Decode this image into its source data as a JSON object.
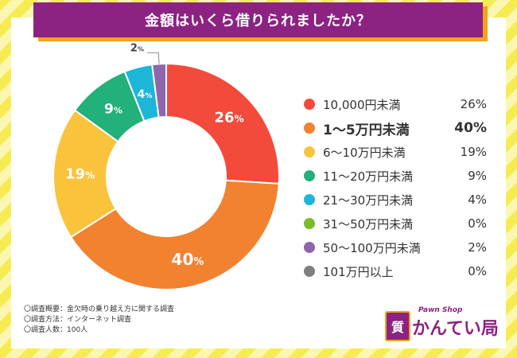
{
  "title": "金額はいくら借りられましたか？",
  "chart_data": {
    "type": "pie",
    "title": "金額はいくら借りられましたか？",
    "categories": [
      "10,000円未満",
      "1〜5万円未満",
      "6〜10万円未満",
      "11〜20万円未満",
      "21〜30万円未満",
      "31〜50万円未満",
      "50〜100万円未満",
      "101万円以上"
    ],
    "values": [
      26,
      40,
      19,
      9,
      4,
      0,
      2,
      0
    ],
    "value_labels": [
      "26%",
      "40%",
      "19%",
      "9%",
      "4%",
      "0%",
      "2%",
      "0%"
    ],
    "colors": [
      "#f34a3b",
      "#f28130",
      "#f9c33c",
      "#22b07b",
      "#1db6d9",
      "#7cbb2c",
      "#8f66ad",
      "#7f7f7f"
    ],
    "highlight_index": 1,
    "donut": true,
    "legend_position": "right"
  },
  "notes": [
    "〇調査概要：金欠時の乗り越え方に関する調査",
    "〇調査方法：インターネット調査",
    "〇調査人数：100人"
  ],
  "logo": {
    "badge": "質",
    "text": "かんてい局",
    "sub": "Pawn Shop",
    "mark": "®"
  },
  "colors": {
    "title_bg": "#8c2282",
    "title_shadow": "#f3a21c",
    "stripe_a": "#f6ec52",
    "stripe_b": "#fbf7b0"
  }
}
